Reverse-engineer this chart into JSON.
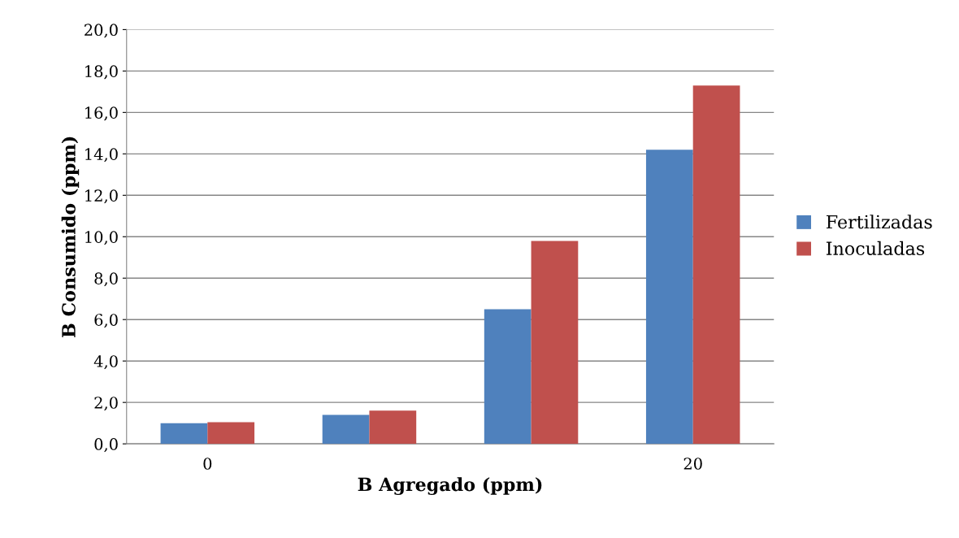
{
  "chart_data": {
    "type": "bar",
    "xlabel": "B Agregado (ppm)",
    "ylabel": "B Consumido (ppm)",
    "categories": [
      "0",
      null,
      null,
      "20"
    ],
    "series": [
      {
        "name": "Fertilizadas",
        "color": "#4f81bd",
        "values": [
          1.0,
          1.4,
          6.5,
          14.2
        ]
      },
      {
        "name": "Inoculadas",
        "color": "#c0504d",
        "values": [
          1.05,
          1.6,
          9.8,
          17.3
        ]
      }
    ],
    "ylim": [
      0,
      20
    ],
    "yticks": [
      {
        "value": 0,
        "label": "0,0"
      },
      {
        "value": 2,
        "label": "2,0"
      },
      {
        "value": 4,
        "label": "4,0"
      },
      {
        "value": 6,
        "label": "6,0"
      },
      {
        "value": 8,
        "label": "8,0"
      },
      {
        "value": 10,
        "label": "10,0"
      },
      {
        "value": 12,
        "label": "12,0"
      },
      {
        "value": 14,
        "label": "14,0"
      },
      {
        "value": 16,
        "label": "16,0"
      },
      {
        "value": 18,
        "label": "18,0"
      },
      {
        "value": 20,
        "label": "20,0"
      }
    ],
    "grid": "y",
    "legend": "right"
  }
}
